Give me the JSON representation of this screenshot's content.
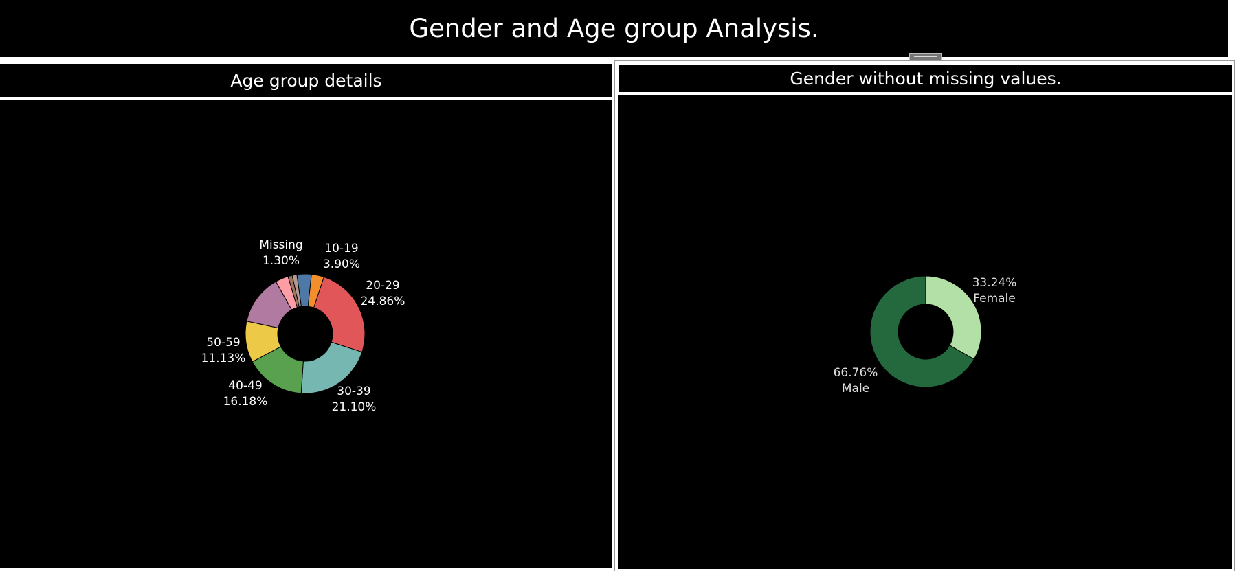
{
  "dashboard": {
    "title": "Gender and Age group Analysis."
  },
  "left_panel": {
    "title": "Age group details"
  },
  "right_panel": {
    "title": "Gender without missing values."
  },
  "chart_data": [
    {
      "type": "pie",
      "title": "Age group details",
      "donut": true,
      "slices": [
        {
          "label": "Missing",
          "value": 1.3,
          "value_text": "1.30%",
          "color": "#b6998c"
        },
        {
          "label": "10-19",
          "value": 3.9,
          "value_text": "3.90%",
          "color": "#4e79a7"
        },
        {
          "label": "",
          "value": 3.4,
          "value_text": "",
          "color": "#f28e2b"
        },
        {
          "label": "20-29",
          "value": 24.86,
          "value_text": "24.86%",
          "color": "#e15759"
        },
        {
          "label": "30-39",
          "value": 21.1,
          "value_text": "21.10%",
          "color": "#76b7b2"
        },
        {
          "label": "40-49",
          "value": 16.18,
          "value_text": "16.18%",
          "color": "#59a14f"
        },
        {
          "label": "50-59",
          "value": 11.13,
          "value_text": "11.13%",
          "color": "#edc948"
        },
        {
          "label": "",
          "value": 13.5,
          "value_text": "",
          "color": "#b07aa1"
        },
        {
          "label": "",
          "value": 3.5,
          "value_text": "",
          "color": "#ff9da7"
        },
        {
          "label": "",
          "value": 1.13,
          "value_text": "",
          "color": "#9c755f"
        }
      ]
    },
    {
      "type": "pie",
      "title": "Gender without missing values.",
      "donut": true,
      "slices": [
        {
          "label": "Female",
          "value": 33.24,
          "value_text": "33.24%",
          "color": "#b3e0a6"
        },
        {
          "label": "Male",
          "value": 66.76,
          "value_text": "66.76%",
          "color": "#24693d"
        }
      ]
    }
  ]
}
